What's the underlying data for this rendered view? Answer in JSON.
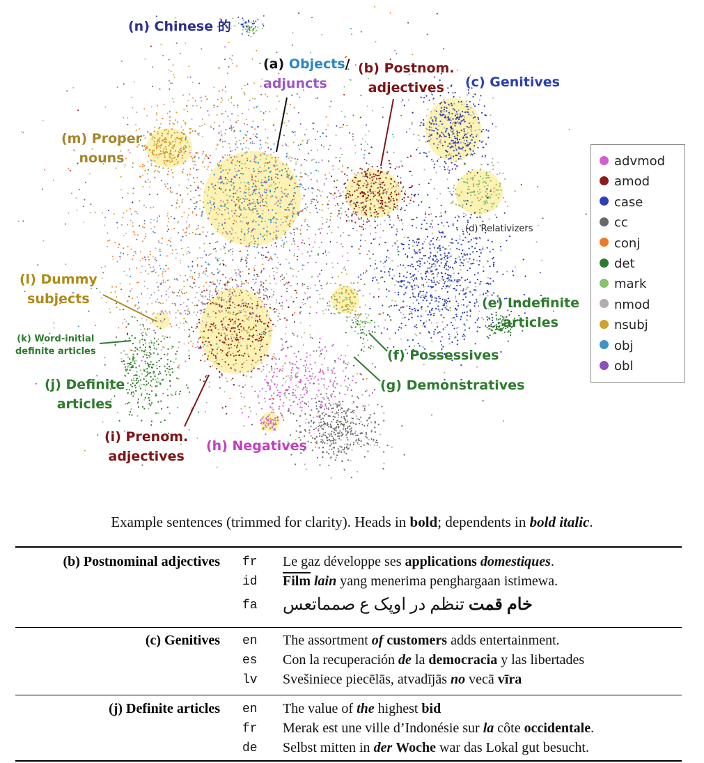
{
  "figure": {
    "cluster_labels": [
      {
        "key": "n",
        "text": "(n) Chinese 的",
        "color": "#2c2f8f"
      },
      {
        "key": "a1",
        "text": "(a) ",
        "color": "#111111"
      },
      {
        "key": "a2",
        "text": "Objects",
        "color": "#2a86c4"
      },
      {
        "key": "a3",
        "text": "/",
        "color": "#111111"
      },
      {
        "key": "a4",
        "text": "adjuncts",
        "color": "#9b57c7"
      },
      {
        "key": "b",
        "text": "(b) Postnom.\nadjectives",
        "color": "#7d1416"
      },
      {
        "key": "c",
        "text": "(c) Genitives",
        "color": "#2a3fb0"
      },
      {
        "key": "d",
        "text": "(d) Relativizers",
        "color": "#222222"
      },
      {
        "key": "e",
        "text": "(e) Indefinite\narticles",
        "color": "#2e7a2e"
      },
      {
        "key": "f",
        "text": "(f) Possessives",
        "color": "#2e7a2e"
      },
      {
        "key": "g",
        "text": "(g) Demonstratives",
        "color": "#2e7a2e"
      },
      {
        "key": "h",
        "text": "(h) Negatives",
        "color": "#c23dc2"
      },
      {
        "key": "i",
        "text": "(i) Prenom.\nadjectives",
        "color": "#7d1416"
      },
      {
        "key": "j",
        "text": "(j) Definite\narticles",
        "color": "#2e7a2e"
      },
      {
        "key": "k",
        "text": "(k) Word-initial\ndefinite articles",
        "color": "#2e7a2e"
      },
      {
        "key": "l",
        "text": "(l) Dummy\nsubjects",
        "color": "#b08a15"
      },
      {
        "key": "m",
        "text": "(m) Proper\nnouns",
        "color": "#a5852b"
      }
    ],
    "legend": [
      {
        "label": "advmod",
        "color": "#d25ed2"
      },
      {
        "label": "amod",
        "color": "#8b1a1a"
      },
      {
        "label": "case",
        "color": "#2a3fb8"
      },
      {
        "label": "cc",
        "color": "#6a6a6a"
      },
      {
        "label": "conj",
        "color": "#ef7a28"
      },
      {
        "label": "det",
        "color": "#2e7a2e"
      },
      {
        "label": "mark",
        "color": "#86c26f"
      },
      {
        "label": "nmod",
        "color": "#b5acac"
      },
      {
        "label": "nsubj",
        "color": "#cfa22a"
      },
      {
        "label": "obj",
        "color": "#3b96c8"
      },
      {
        "label": "obl",
        "color": "#8e4fb8"
      }
    ]
  },
  "caption": {
    "text_a": "Example sentences (trimmed for clarity). Heads in ",
    "bold": "bold",
    "text_b": "; dependents in ",
    "bold_italic": "bold italic",
    "text_c": "."
  },
  "table": {
    "groups": [
      {
        "title": "(b) Postnominal adjectives",
        "rows": [
          {
            "lang": "fr",
            "parts": [
              {
                "t": "Le gaz développe ses ",
                "s": ""
              },
              {
                "t": "applications",
                "s": "b"
              },
              {
                "t": " ",
                "s": ""
              },
              {
                "t": "domestiques",
                "s": "dep"
              },
              {
                "t": ".",
                "s": ""
              }
            ]
          },
          {
            "lang": "id",
            "parts": [
              {
                "t": "Film",
                "s": "b ol"
              },
              {
                "t": " ",
                "s": ""
              },
              {
                "t": "lain",
                "s": "dep"
              },
              {
                "t": " yang menerima penghargaan istimewa.",
                "s": ""
              }
            ]
          },
          {
            "lang": "fa",
            "parts": [
              {
                "t": "خام",
                "s": "b"
              },
              {
                "t": " ",
                "s": ""
              },
              {
                "t": "قمت",
                "s": "b"
              },
              {
                "t": " تنظم در اوپک ع صمماتعس",
                "s": ""
              }
            ]
          }
        ]
      },
      {
        "title": "(c) Genitives",
        "rows": [
          {
            "lang": "en",
            "parts": [
              {
                "t": "The assortment ",
                "s": ""
              },
              {
                "t": "of",
                "s": "dep"
              },
              {
                "t": " ",
                "s": ""
              },
              {
                "t": "customers",
                "s": "b"
              },
              {
                "t": " adds entertainment.",
                "s": ""
              }
            ]
          },
          {
            "lang": "es",
            "parts": [
              {
                "t": "Con la recuperación ",
                "s": ""
              },
              {
                "t": "de",
                "s": "dep"
              },
              {
                "t": " la ",
                "s": ""
              },
              {
                "t": "democracia",
                "s": "b"
              },
              {
                "t": " y las libertades",
                "s": ""
              }
            ]
          },
          {
            "lang": "lv",
            "parts": [
              {
                "t": "Svešiniece piecēlās, atvadījās ",
                "s": ""
              },
              {
                "t": "no",
                "s": "dep"
              },
              {
                "t": " vecā ",
                "s": ""
              },
              {
                "t": "vīra",
                "s": "b"
              }
            ]
          }
        ]
      },
      {
        "title": "(j) Definite articles",
        "rows": [
          {
            "lang": "en",
            "parts": [
              {
                "t": "The value of ",
                "s": ""
              },
              {
                "t": "the",
                "s": "dep"
              },
              {
                "t": " highest ",
                "s": ""
              },
              {
                "t": "bid",
                "s": "b"
              }
            ]
          },
          {
            "lang": "fr",
            "parts": [
              {
                "t": "Merak est une ville d’Indonésie sur ",
                "s": ""
              },
              {
                "t": "la",
                "s": "dep"
              },
              {
                "t": " côte ",
                "s": ""
              },
              {
                "t": "occidentale",
                "s": "b"
              },
              {
                "t": ".",
                "s": ""
              }
            ]
          },
          {
            "lang": "de",
            "parts": [
              {
                "t": "Selbst mitten in ",
                "s": ""
              },
              {
                "t": "der",
                "s": "dep"
              },
              {
                "t": " ",
                "s": ""
              },
              {
                "t": "Woche",
                "s": "b"
              },
              {
                "t": " war das Lokal gut besucht.",
                "s": ""
              }
            ]
          }
        ]
      }
    ]
  }
}
